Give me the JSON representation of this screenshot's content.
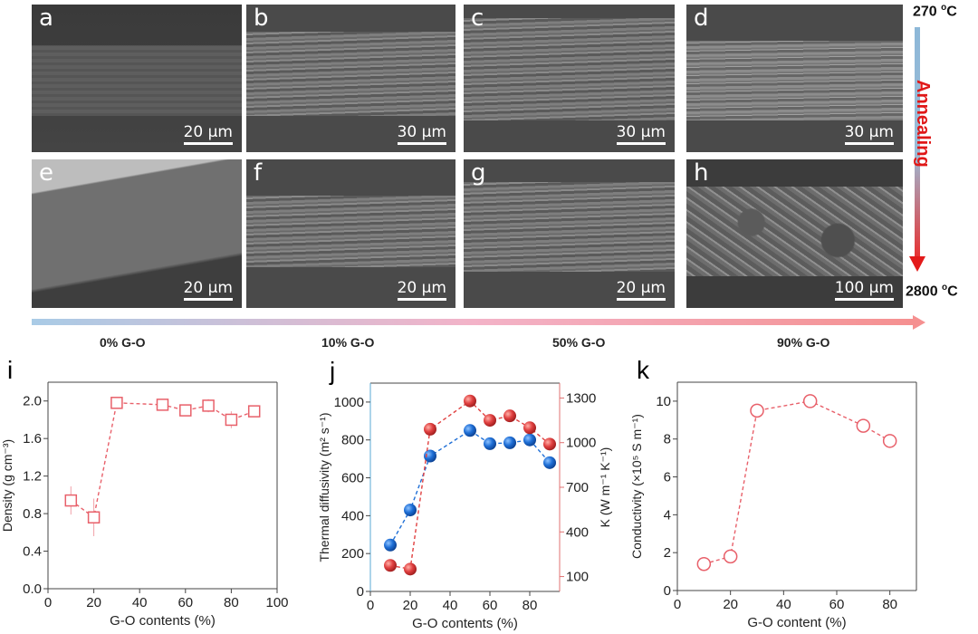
{
  "sem_panels": [
    {
      "label": "a",
      "scale": "20 µm"
    },
    {
      "label": "b",
      "scale": "30 µm"
    },
    {
      "label": "c",
      "scale": "30 µm"
    },
    {
      "label": "d",
      "scale": "30 µm"
    },
    {
      "label": "e",
      "scale": "20 µm"
    },
    {
      "label": "f",
      "scale": "20 µm"
    },
    {
      "label": "g",
      "scale": "20 µm"
    },
    {
      "label": "h",
      "scale": "100 µm"
    }
  ],
  "annealing": {
    "label": "Annealing",
    "start_temp": "270 ",
    "end_temp": "2800 ",
    "unit_sup": "o",
    "unit": "C"
  },
  "go_labels": [
    "0% G-O",
    "10% G-O",
    "50% G-O",
    "90% G-O"
  ],
  "chart_data": [
    {
      "panel": "i",
      "type": "scatter",
      "xlabel": "G-O contents (%)",
      "ylabel": "Density (g cm⁻³)",
      "xlim": [
        0,
        100
      ],
      "ylim": [
        0,
        2.2
      ],
      "xticks": [
        0,
        20,
        40,
        60,
        80,
        100
      ],
      "yticks": [
        0.0,
        0.4,
        0.8,
        1.2,
        1.6,
        2.0
      ],
      "color": "#e8606a",
      "series": [
        {
          "name": "Density",
          "x": [
            10,
            20,
            30,
            50,
            60,
            70,
            80,
            90
          ],
          "y": [
            0.94,
            0.76,
            1.98,
            1.96,
            1.9,
            1.95,
            1.8,
            1.89
          ],
          "err": [
            0.15,
            0.2,
            0.04,
            0.04,
            0.05,
            0.07,
            0.09,
            0.05
          ],
          "marker": "square"
        }
      ]
    },
    {
      "panel": "j",
      "type": "scatter",
      "xlabel": "G-O contents (%)",
      "ylabel": "Thermal diffusivity (m² s⁻¹)",
      "ylabel_right": "K (W m⁻¹ K⁻¹)",
      "xlim": [
        0,
        95
      ],
      "ylim": [
        0,
        1100
      ],
      "ylim_right": [
        0,
        1400
      ],
      "xticks": [
        0,
        20,
        40,
        60,
        80
      ],
      "yticks": [
        0,
        200,
        400,
        600,
        800,
        1000
      ],
      "yticks_right": [
        100,
        400,
        700,
        1000,
        1300
      ],
      "series": [
        {
          "name": "Thermal diffusivity",
          "axis": "left",
          "color": "#1f6fd6",
          "x": [
            10,
            20,
            30,
            50,
            60,
            70,
            80,
            90
          ],
          "y": [
            245,
            430,
            715,
            850,
            780,
            785,
            800,
            680
          ],
          "marker": "sphere"
        },
        {
          "name": "K",
          "axis": "right",
          "color": "#e04040",
          "x": [
            10,
            20,
            30,
            50,
            60,
            70,
            80,
            90
          ],
          "y": [
            175,
            150,
            1090,
            1280,
            1150,
            1180,
            1100,
            990
          ],
          "marker": "sphere"
        }
      ]
    },
    {
      "panel": "k",
      "type": "scatter",
      "xlabel": "G-O content (%)",
      "ylabel": "Conductivity (×10⁵ S m⁻¹)",
      "xlim": [
        0,
        90
      ],
      "ylim": [
        0,
        11
      ],
      "xticks": [
        0,
        20,
        40,
        60,
        80
      ],
      "yticks": [
        0,
        2,
        4,
        6,
        8,
        10
      ],
      "color": "#e8606a",
      "series": [
        {
          "name": "Conductivity",
          "x": [
            10,
            20,
            30,
            50,
            70,
            80
          ],
          "y": [
            1.4,
            1.8,
            9.5,
            10.0,
            8.7,
            7.9
          ],
          "marker": "circle"
        }
      ]
    }
  ]
}
